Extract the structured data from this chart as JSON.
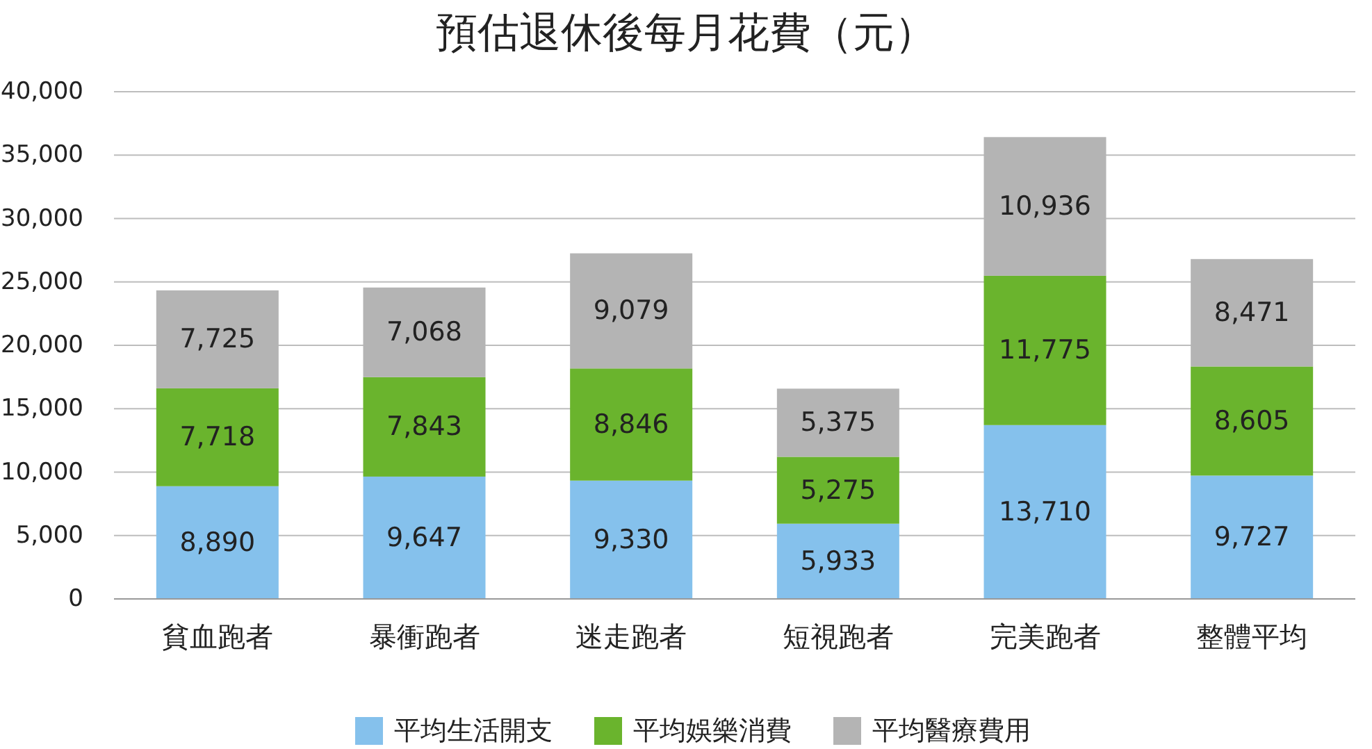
{
  "chart_data": {
    "type": "bar",
    "title": "預估退休後每月花費（元）",
    "stacked": true,
    "categories": [
      "貧血跑者",
      "暴衝跑者",
      "迷走跑者",
      "短視跑者",
      "完美跑者",
      "整體平均"
    ],
    "series": [
      {
        "name": "平均生活開支",
        "color": "#85c1ec",
        "values": [
          8890,
          9647,
          9330,
          5933,
          13710,
          9727
        ],
        "value_labels": [
          "8,890",
          "9,647",
          "9,330",
          "5,933",
          "13,710",
          "9,727"
        ]
      },
      {
        "name": "平均娛樂消費",
        "color": "#6ab42d",
        "values": [
          7718,
          7843,
          8846,
          5275,
          11775,
          8605
        ],
        "value_labels": [
          "7,718",
          "7,843",
          "8,846",
          "5,275",
          "11,775",
          "8,605"
        ]
      },
      {
        "name": "平均醫療費用",
        "color": "#b4b4b4",
        "values": [
          7725,
          7068,
          9079,
          5375,
          10936,
          8471
        ],
        "value_labels": [
          "7,725",
          "7,068",
          "9,079",
          "5,375",
          "10,936",
          "8,471"
        ]
      }
    ],
    "ylim": [
      0,
      40000
    ],
    "yticks": [
      0,
      {
        "value": 5000,
        "label": "5,000"
      },
      {
        "value": 10000,
        "label": "10,000"
      },
      {
        "value": 15000,
        "label": "15,000"
      },
      {
        "value": 20000,
        "label": "20,000"
      },
      {
        "value": 25000,
        "label": "25,000"
      },
      {
        "value": 30000,
        "label": "30,000"
      },
      {
        "value": 35000,
        "label": "35,000"
      },
      {
        "value": 40000,
        "label": "40,000"
      }
    ],
    "grid": "y",
    "legend": "bottom"
  }
}
